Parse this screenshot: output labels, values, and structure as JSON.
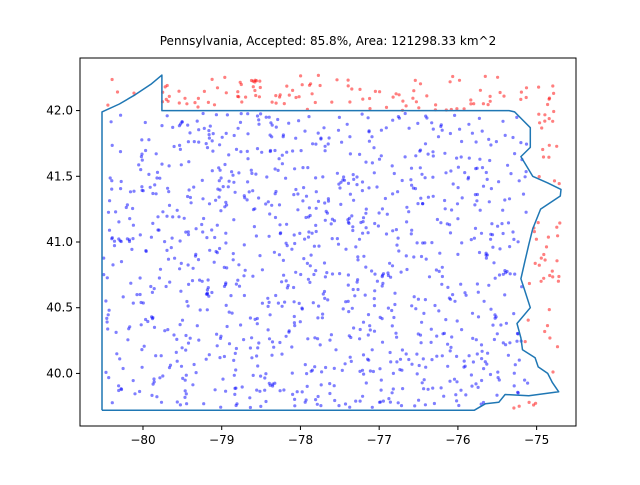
{
  "chart_data": {
    "type": "scatter",
    "title": "Pennsylvania, Accepted: 85.8%, Area: 121298.33 km^2",
    "xlabel": "",
    "ylabel": "",
    "xlim": [
      -80.8,
      -74.5
    ],
    "ylim": [
      39.6,
      42.4
    ],
    "xticks": [
      -80,
      -79,
      -78,
      -77,
      -76,
      -75
    ],
    "xtick_labels": [
      "−80",
      "−79",
      "−78",
      "−77",
      "−76",
      "−75"
    ],
    "yticks": [
      40.0,
      40.5,
      41.0,
      41.5,
      42.0
    ],
    "ytick_labels": [
      "40.0",
      "40.5",
      "41.0",
      "41.5",
      "42.0"
    ],
    "grid": false,
    "colors": {
      "accepted": "#0000ff",
      "rejected": "#ff0000",
      "boundary": "#1f77b4"
    },
    "boundary": {
      "x": [
        -80.52,
        -80.52,
        -80.52,
        -80.3,
        -80.1,
        -79.9,
        -79.76,
        -79.76,
        -79.76,
        -78.5,
        -77.0,
        -75.35,
        -75.28,
        -75.08,
        -75.08,
        -75.2,
        -75.05,
        -74.86,
        -74.69,
        -74.7,
        -74.95,
        -75.05,
        -75.1,
        -75.15,
        -75.2,
        -75.15,
        -75.08,
        -75.25,
        -75.2,
        -75.18,
        -75.02,
        -74.98,
        -74.86,
        -74.8,
        -74.72,
        -75.1,
        -75.4,
        -75.48,
        -75.65,
        -75.79,
        -77.0,
        -78.5,
        -79.5,
        -80.52
      ],
      "y": [
        39.72,
        40.5,
        41.99,
        42.05,
        42.12,
        42.2,
        42.27,
        42.0,
        42.0,
        42.0,
        42.0,
        42.0,
        41.99,
        41.87,
        41.72,
        41.65,
        41.5,
        41.45,
        41.4,
        41.35,
        41.25,
        41.1,
        40.98,
        40.85,
        40.72,
        40.63,
        40.5,
        40.38,
        40.27,
        40.18,
        40.12,
        40.05,
        40.0,
        39.93,
        39.86,
        39.83,
        39.84,
        39.78,
        39.77,
        39.72,
        39.72,
        39.72,
        39.72,
        39.72
      ]
    },
    "series": [
      {
        "name": "",
        "color": "#0000ff",
        "count": 1040,
        "xrange": [
          -80.5,
          -75.1
        ],
        "yrange": [
          39.74,
          41.98
        ],
        "seed": 12345
      },
      {
        "name": "",
        "color": "#ff0000",
        "count": 172,
        "xrange": [
          -80.52,
          -74.7
        ],
        "yrange": [
          39.72,
          42.27
        ],
        "seed": 6789
      }
    ]
  }
}
